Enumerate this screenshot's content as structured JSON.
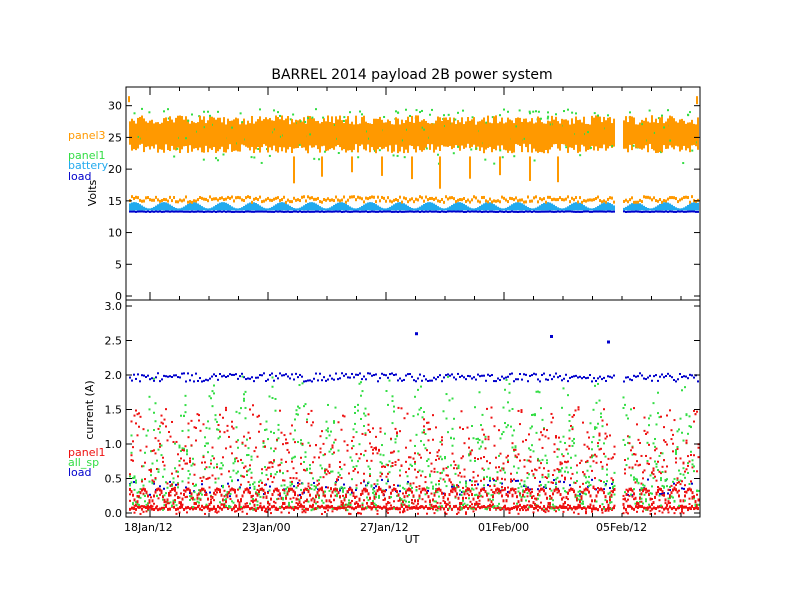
{
  "chart_data": [
    {
      "type": "scatter",
      "title": "BARREL 2014 payload 2B power system",
      "ylabel": "Volts",
      "ylim": [
        0,
        32
      ],
      "yticks": [
        0,
        5,
        10,
        15,
        20,
        25,
        30
      ],
      "ytick_labels": [
        "0",
        "5",
        "10",
        "15",
        "20",
        "25",
        "30"
      ],
      "grid": false,
      "legend_placement": "left",
      "series": [
        {
          "name": "panel3",
          "color": "#ff9900",
          "typical_range": [
            21,
            30
          ],
          "secondary_band": [
            15,
            16
          ]
        },
        {
          "name": "panel1",
          "color": "#33dd44",
          "typical_range": [
            20,
            29
          ]
        },
        {
          "name": "battery",
          "color": "#22aaee",
          "typical_range": [
            13.8,
            14.8
          ]
        },
        {
          "name": "load",
          "color": "#0000cc",
          "typical_range": [
            13.2,
            13.6
          ]
        }
      ]
    },
    {
      "type": "scatter",
      "ylabel": "current (A)",
      "xlabel": "UT",
      "ylim": [
        0,
        3
      ],
      "yticks": [
        0,
        0.5,
        1,
        1.5,
        2,
        2.5,
        3
      ],
      "ytick_labels": [
        "0.0",
        "0.5",
        "1.0",
        "1.5",
        "2.0",
        "2.5",
        "3.0"
      ],
      "x_tick_labels": [
        "18Jan/12",
        "23Jan/00",
        "27Jan/12",
        "01Feb/00",
        "05Feb/12"
      ],
      "grid": false,
      "legend_placement": "left",
      "series": [
        {
          "name": "panel1",
          "color": "#ee1111",
          "typical_range": [
            0,
            1.6
          ]
        },
        {
          "name": "all_sp",
          "color": "#33dd44",
          "typical_range": [
            0,
            2.1
          ]
        },
        {
          "name": "load",
          "color": "#0000cc",
          "typical_range": [
            0.2,
            2.0
          ]
        }
      ],
      "outliers": [
        {
          "series": "load",
          "x": "29Jan/00",
          "y": 2.62
        },
        {
          "series": "load",
          "x": "03Feb/00",
          "y": 2.58
        },
        {
          "series": "load",
          "x": "04Feb/18",
          "y": 2.5
        }
      ]
    }
  ]
}
